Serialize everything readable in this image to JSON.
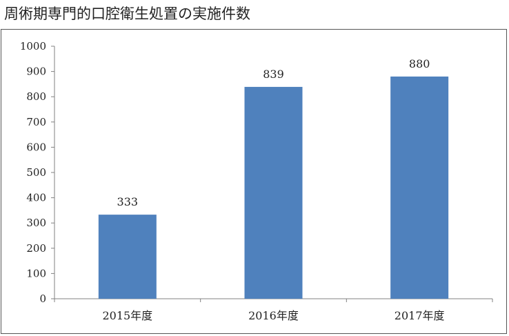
{
  "title": "周術期専門的口腔衛生処置の実施件数",
  "chart_data": {
    "type": "bar",
    "title": "周術期専門的口腔衛生処置の実施件数",
    "categories": [
      "2015年度",
      "2016年度",
      "2017年度"
    ],
    "values": [
      333,
      839,
      880
    ],
    "data_labels": [
      "333",
      "839",
      "880"
    ],
    "xlabel": "",
    "ylabel": "",
    "ylim": [
      0,
      1000
    ],
    "yticks": [
      0,
      100,
      200,
      300,
      400,
      500,
      600,
      700,
      800,
      900,
      1000
    ],
    "ytick_labels": [
      "0",
      "100",
      "200",
      "300",
      "400",
      "500",
      "600",
      "700",
      "800",
      "900",
      "1000"
    ],
    "grid": false,
    "legend": "none",
    "bar_color": "#4F81BD"
  }
}
